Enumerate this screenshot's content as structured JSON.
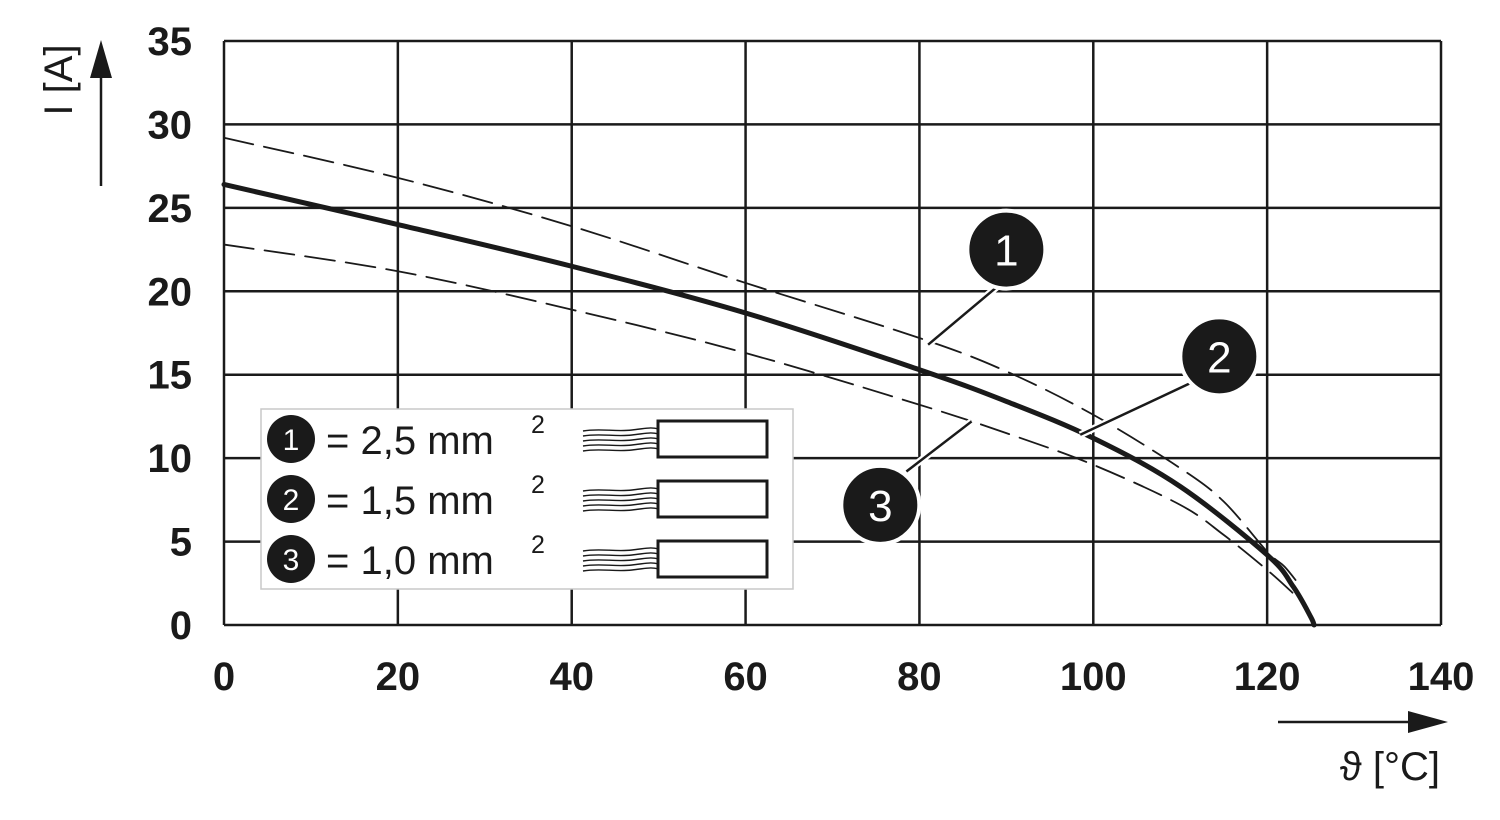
{
  "chart_data": {
    "type": "line",
    "xlabel": "ϑ [°C]",
    "ylabel": "I [A]",
    "xlim": [
      0,
      140
    ],
    "ylim": [
      0,
      35
    ],
    "x_ticks": [
      "0",
      "20",
      "40",
      "60",
      "80",
      "100",
      "120",
      "140"
    ],
    "y_ticks": [
      "0",
      "5",
      "10",
      "15",
      "20",
      "25",
      "30",
      "35"
    ],
    "grid": true,
    "legend_position": "bottom-left",
    "series": [
      {
        "id": "1",
        "style": "dashed",
        "legend_value": "= 2,5 mm",
        "legend_sup": "2",
        "points": [
          [
            0,
            29.2
          ],
          [
            20,
            26.8
          ],
          [
            40,
            23.9
          ],
          [
            60,
            20.5
          ],
          [
            80,
            17.2
          ],
          [
            90,
            15.2
          ],
          [
            100,
            12.6
          ],
          [
            110,
            9.4
          ],
          [
            115,
            7.4
          ],
          [
            120,
            4.4
          ],
          [
            122,
            3.5
          ],
          [
            124,
            2.2
          ]
        ]
      },
      {
        "id": "2",
        "style": "solid",
        "legend_value": "= 1,5 mm",
        "legend_sup": "2",
        "points": [
          [
            0,
            26.4
          ],
          [
            20,
            24.0
          ],
          [
            40,
            21.5
          ],
          [
            60,
            18.7
          ],
          [
            80,
            15.3
          ],
          [
            90,
            13.4
          ],
          [
            100,
            11.2
          ],
          [
            110,
            8.3
          ],
          [
            120,
            4.2
          ],
          [
            123,
            2.3
          ],
          [
            125,
            0.5
          ],
          [
            125.4,
            0
          ]
        ]
      },
      {
        "id": "3",
        "style": "dashed",
        "legend_value": "= 1,0 mm",
        "legend_sup": "2",
        "points": [
          [
            0,
            22.8
          ],
          [
            20,
            21.2
          ],
          [
            40,
            18.9
          ],
          [
            60,
            16.3
          ],
          [
            80,
            13.2
          ],
          [
            90,
            11.5
          ],
          [
            100,
            9.6
          ],
          [
            110,
            7.2
          ],
          [
            115,
            5.4
          ],
          [
            120,
            3.3
          ],
          [
            123,
            1.9
          ]
        ]
      }
    ],
    "markers": [
      {
        "label": "1",
        "series": "1",
        "center": [
          90,
          22.5
        ],
        "line_from": [
          89,
          20.3
        ],
        "line_to": [
          81,
          16.8
        ]
      },
      {
        "label": "2",
        "series": "2",
        "center": [
          114.5,
          16.1
        ],
        "line_from": [
          112,
          14.7
        ],
        "line_to": [
          98.5,
          11.4
        ]
      },
      {
        "label": "3",
        "series": "3",
        "center": [
          75.5,
          7.2
        ],
        "line_from": [
          78.5,
          9.2
        ],
        "line_to": [
          86,
          12.2
        ]
      }
    ]
  }
}
